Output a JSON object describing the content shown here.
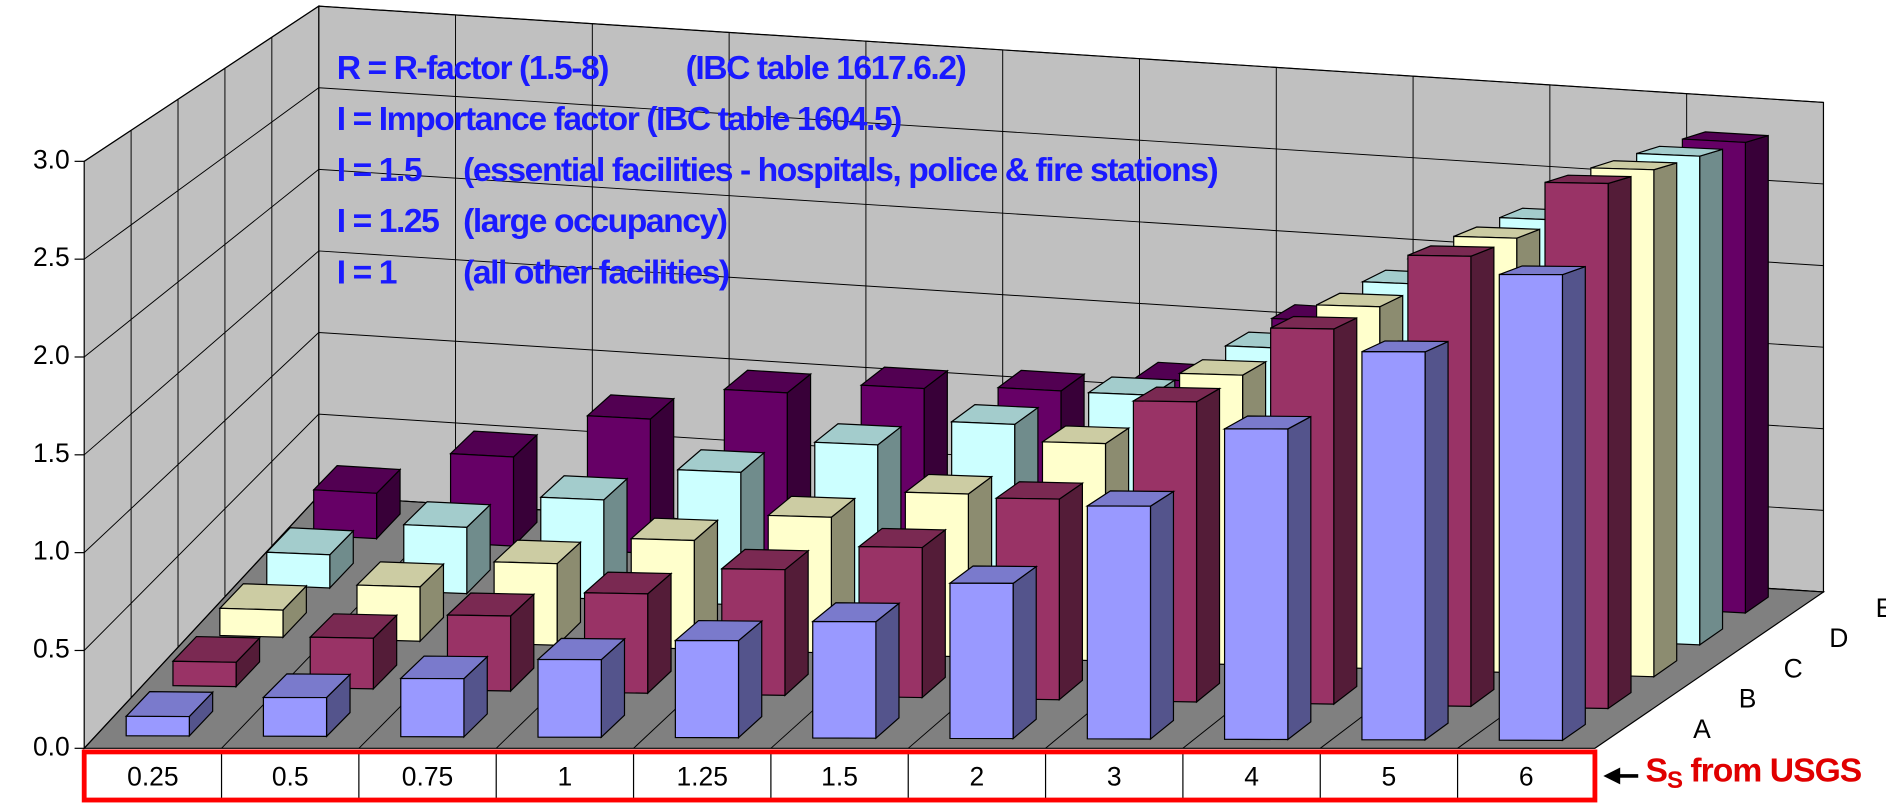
{
  "chart_data": {
    "type": "bar3d",
    "categories": [
      "0.25",
      "0.5",
      "0.75",
      "1",
      "1.25",
      "1.5",
      "2",
      "3",
      "4",
      "5",
      "6"
    ],
    "series": [
      {
        "name": "A",
        "color": "#9999ff",
        "values": [
          0.1,
          0.2,
          0.3,
          0.4,
          0.5,
          0.6,
          0.8,
          1.2,
          1.6,
          2.0,
          2.4
        ]
      },
      {
        "name": "B",
        "color": "#993366",
        "values": [
          0.13,
          0.27,
          0.4,
          0.53,
          0.67,
          0.8,
          1.07,
          1.6,
          2.0,
          2.4,
          2.8
        ]
      },
      {
        "name": "C",
        "color": "#ffffcc",
        "values": [
          0.15,
          0.3,
          0.45,
          0.6,
          0.75,
          0.9,
          1.2,
          1.6,
          2.0,
          2.4,
          2.8
        ]
      },
      {
        "name": "D",
        "color": "#ccffff",
        "values": [
          0.19,
          0.38,
          0.57,
          0.76,
          0.95,
          1.1,
          1.3,
          1.6,
          2.0,
          2.4,
          2.8
        ]
      },
      {
        "name": "E",
        "color": "#660066",
        "values": [
          0.27,
          0.53,
          0.8,
          1.0,
          1.07,
          1.1,
          1.2,
          1.6,
          2.0,
          2.4,
          2.8
        ]
      }
    ],
    "ylim": [
      0,
      3
    ],
    "yticks": [
      {
        "value": 0,
        "label": "0.0"
      },
      0.5,
      {
        "value": 1,
        "label": "1.0"
      },
      1.5,
      {
        "value": 2,
        "label": "2.0"
      },
      2.5,
      {
        "value": 3,
        "label": "3.0"
      }
    ],
    "grid": true,
    "annotations": [
      [
        "R = R-factor (1.5-8)",
        "(IBC table 1617.6.2)"
      ],
      [
        "I = Importance factor (IBC table 1604.5)"
      ],
      [
        "I = 1.5",
        "(essential facilities - hospitals, police & fire stations)"
      ],
      [
        "I = 1.25",
        "(large occupancy)"
      ],
      [
        "I = 1",
        "(all other facilities)"
      ]
    ],
    "x_source_label": {
      "main": "S",
      "sub": "S",
      "rest": " from USGS"
    }
  }
}
